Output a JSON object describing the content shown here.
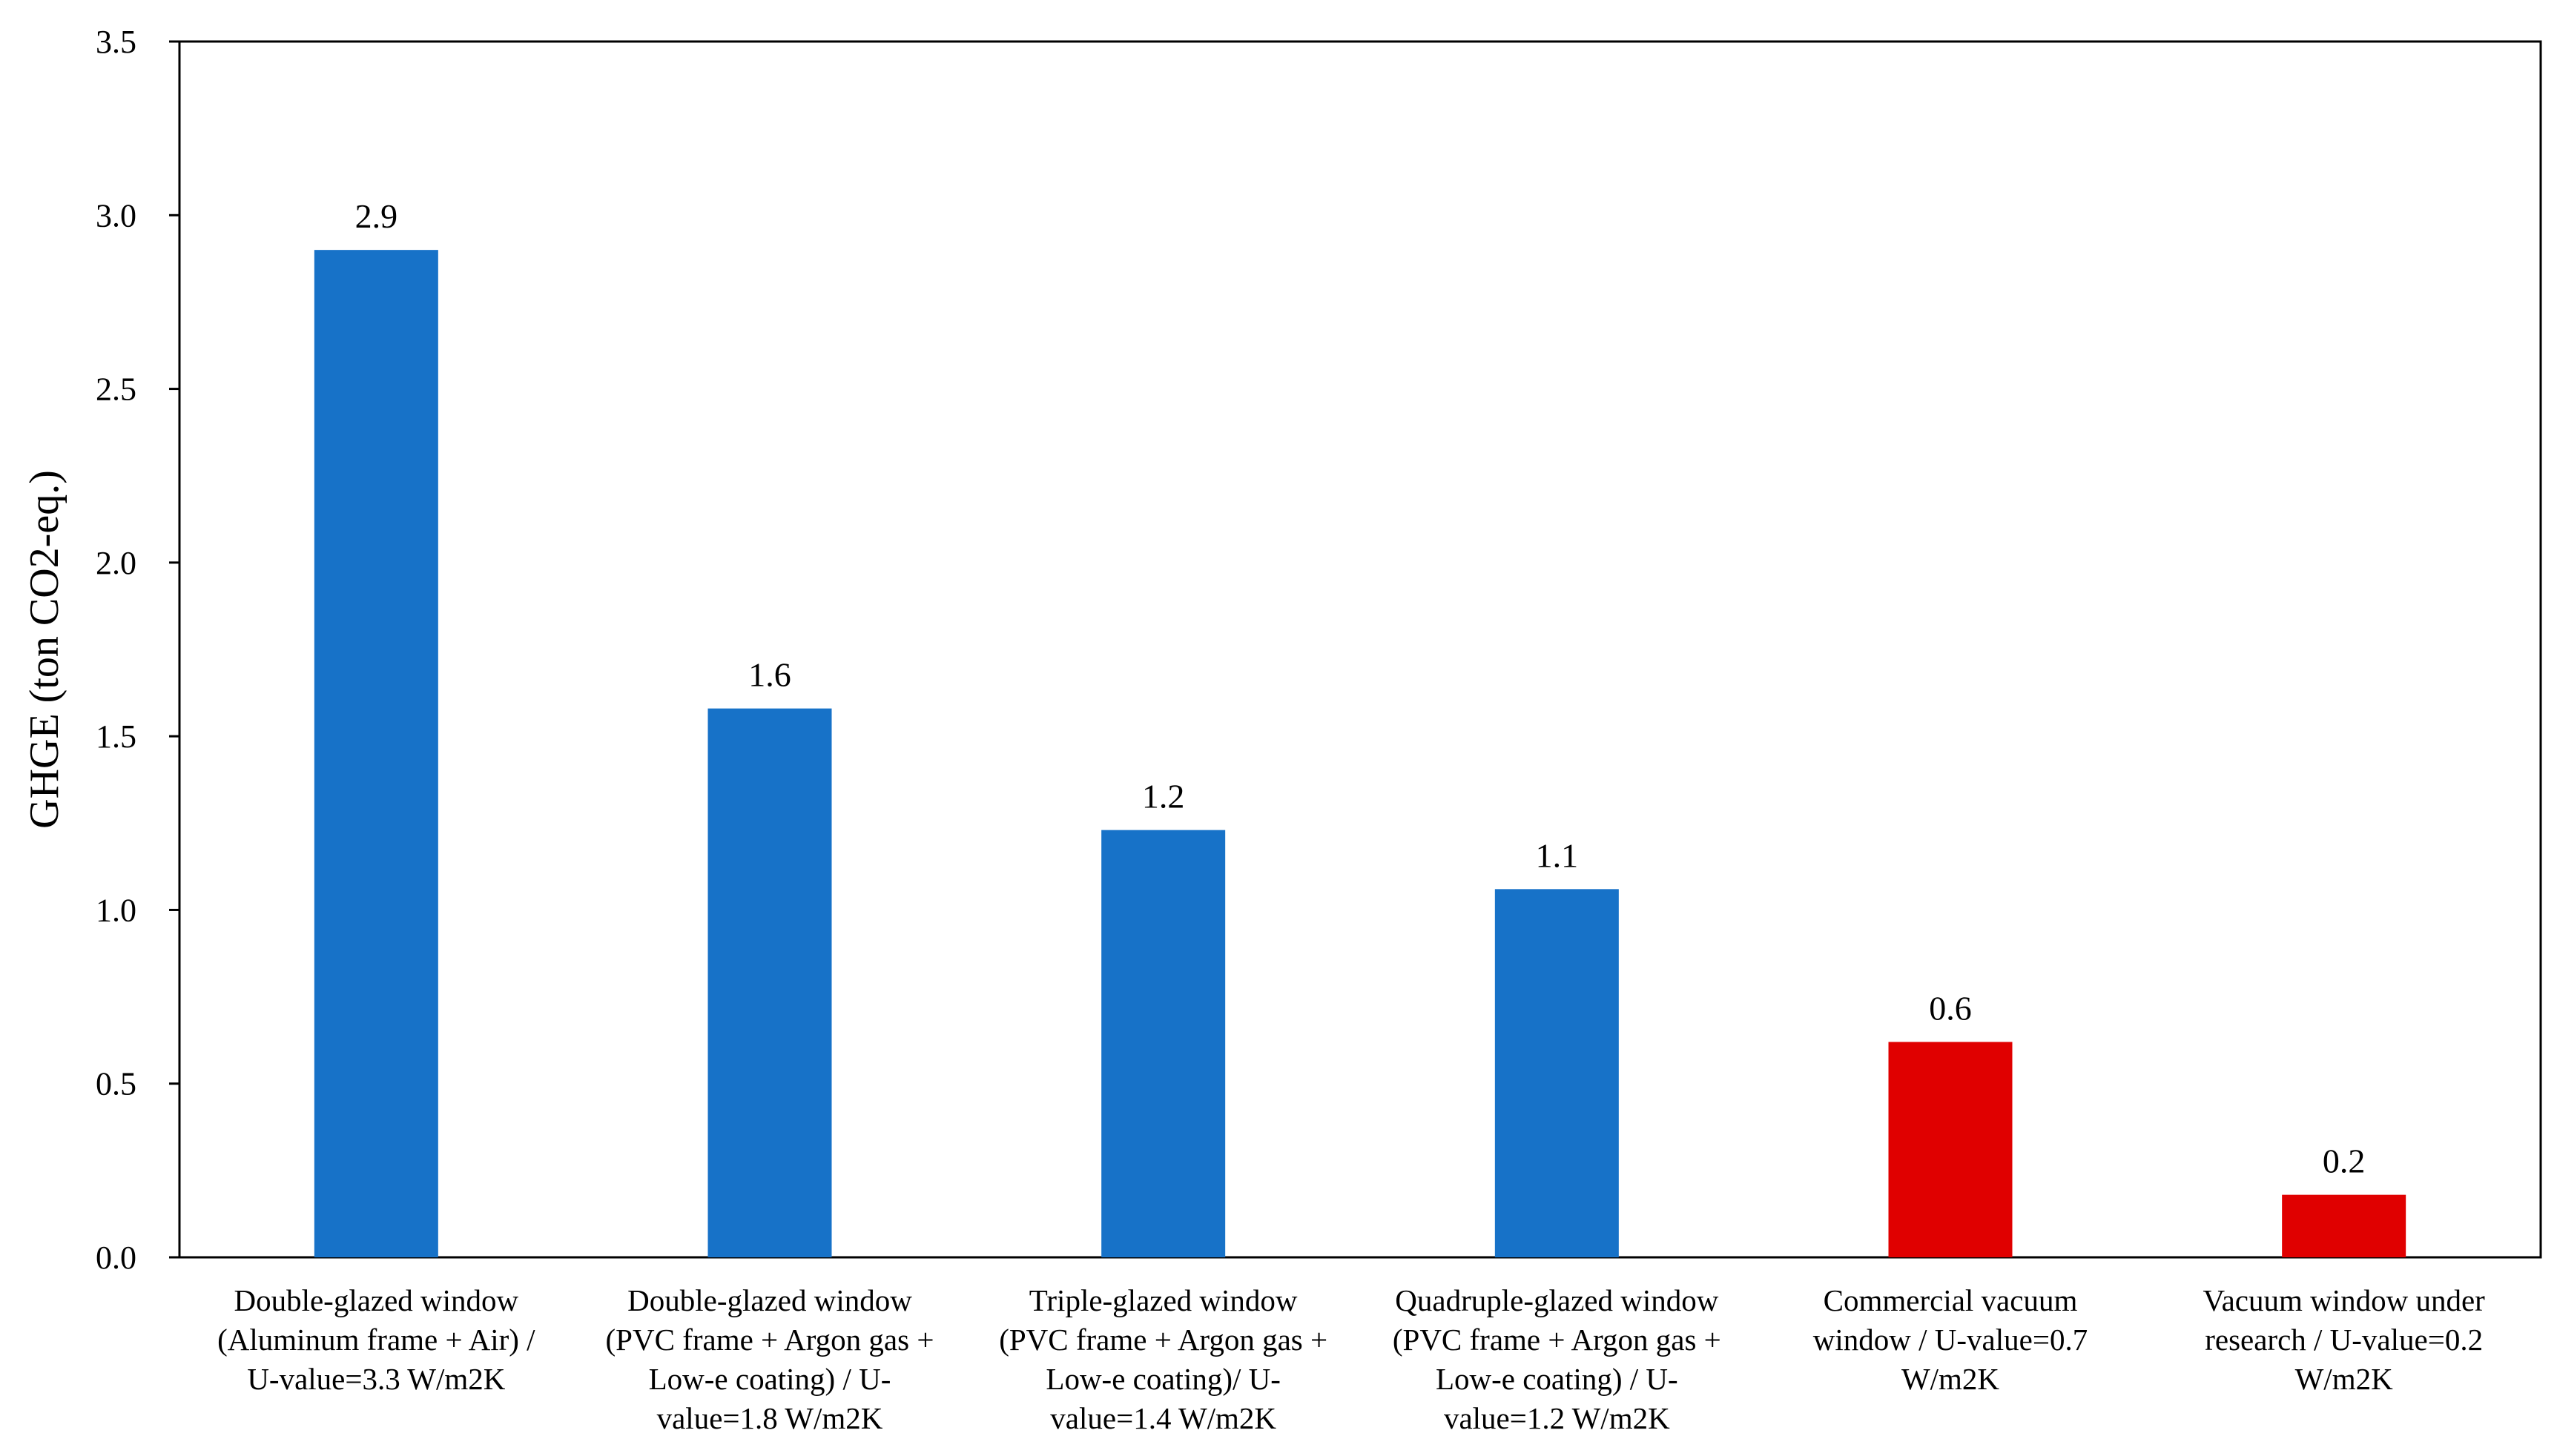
{
  "chart_data": {
    "type": "bar",
    "title": "",
    "xlabel": "",
    "ylabel": "GHGE (ton CO2-eq.)",
    "ylim": [
      0,
      3.5
    ],
    "yticks": [
      "0.0",
      "0.5",
      "1.0",
      "1.5",
      "2.0",
      "2.5",
      "3.0",
      "3.5"
    ],
    "grid": false,
    "legend": "none",
    "categories": [
      [
        "Double-glazed window",
        "(Aluminum frame + Air) /",
        "U-value=3.3 W/m2K"
      ],
      [
        "Double-glazed window",
        "(PVC frame + Argon gas +",
        "Low-e coating)  / U-",
        "value=1.8 W/m2K"
      ],
      [
        "Triple-glazed window",
        "(PVC frame + Argon gas +",
        "Low-e coating)/ U-",
        "value=1.4 W/m2K"
      ],
      [
        "Quadruple-glazed window",
        "(PVC frame + Argon gas +",
        "Low-e coating)  / U-",
        "value=1.2 W/m2K"
      ],
      [
        "Commercial vacuum",
        "window / U-value=0.7",
        "W/m2K"
      ],
      [
        "Vacuum window under",
        "research  / U-value=0.2",
        "W/m2K"
      ]
    ],
    "values": [
      2.9,
      1.58,
      1.23,
      1.06,
      0.62,
      0.18
    ],
    "data_labels": [
      "2.9",
      "1.6",
      "1.2",
      "1.1",
      "0.6",
      "0.2"
    ],
    "bar_colors": [
      "#1772C8",
      "#1772C8",
      "#1772C8",
      "#1772C8",
      "#E00000",
      "#E00000"
    ]
  }
}
